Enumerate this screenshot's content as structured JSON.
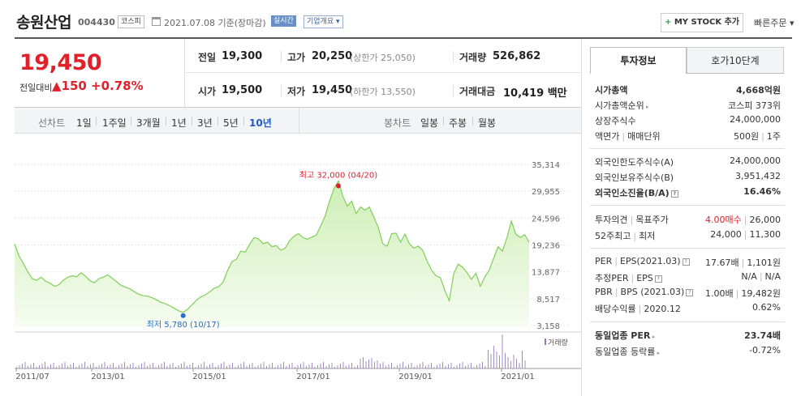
{
  "header": {
    "stock_name": "송원산업",
    "stock_code": "004430",
    "market": "코스피",
    "base_date": "2021.07.08 기준(장마감)",
    "realtime_label": "실시간",
    "company_label": "기업개요 ▾",
    "mystock_label": "MY STOCK 추가",
    "mystock_plus": "+",
    "quick_order_label": "빠른주문 ▾"
  },
  "price": {
    "current": "19,450",
    "prev_label": "전일대비",
    "change_amount": "▲150",
    "change_percent": "+0.78%"
  },
  "stats": {
    "prev_close_label": "전일",
    "prev_close": "19,300",
    "high_label": "고가",
    "high": "20,250",
    "upper_limit": "(상한가 25,050)",
    "volume_label": "거래량",
    "volume": "526,862",
    "open_label": "시가",
    "open": "19,500",
    "low_label": "저가",
    "low": "19,450",
    "lower_limit": "(하한가 13,550)",
    "amount_label": "거래대금",
    "amount": "10,419 백만"
  },
  "period_tabs": {
    "line_chart_label": "선차트",
    "items": [
      "1일",
      "1주일",
      "3개월",
      "1년",
      "3년",
      "5년",
      "10년"
    ],
    "active": "10년",
    "candle_label": "봉차트",
    "candle_items": [
      "일봉",
      "주봉",
      "월봉"
    ]
  },
  "chart_data": {
    "type": "area",
    "title": "",
    "ylabel": "",
    "xlabel": "",
    "ylim": [
      3158,
      35314
    ],
    "y_ticks": [
      "35,314",
      "29,955",
      "24,596",
      "19,236",
      "13,877",
      "8,517",
      "3,158"
    ],
    "x_ticks": [
      "2011/07",
      "2013/01",
      "2015/01",
      "2017/01",
      "2019/01",
      "2021/01"
    ],
    "high_annotation": "최고 32,000 (04/20)",
    "low_annotation": "최저 5,780 (10/17)",
    "volume_legend": "거래량",
    "line_color": "#7fcf5a",
    "fill_color": "#dff3cf",
    "high_color": "#e0202a",
    "low_color": "#1f6fd1",
    "series": [
      {
        "values": [
          19500,
          17000,
          15500,
          13800,
          12500,
          12200,
          12800,
          12000,
          11600,
          11000,
          11300,
          12200,
          12800,
          13100,
          12900,
          13700,
          13000,
          12100,
          11700,
          12500,
          12800,
          13300,
          12600,
          11900,
          11200,
          10800,
          10500,
          9900,
          9400,
          9100,
          9000,
          8700,
          8300,
          7800,
          7500,
          7100,
          6600,
          6100,
          5780,
          6400,
          7300,
          8200,
          8900,
          9300,
          9900,
          10600,
          10900,
          11800,
          14100,
          15900,
          16400,
          18000,
          17800,
          19400,
          20700,
          20500,
          19500,
          19800,
          18900,
          19100,
          18200,
          18600,
          20100,
          21000,
          21500,
          20700,
          20400,
          20800,
          21200,
          23000,
          25000,
          28000,
          30500,
          32000,
          29000,
          27000,
          28000,
          25500,
          26800,
          26200,
          26800,
          24800,
          22700,
          19500,
          19000,
          21500,
          21600,
          19800,
          21400,
          19500,
          18600,
          19000,
          18200,
          16000,
          14200,
          13100,
          12700,
          10100,
          8100,
          13500,
          15400,
          14800,
          13700,
          12400,
          13600,
          11000,
          12800,
          14200,
          16600,
          18900,
          18000,
          20700,
          24000,
          21400,
          20700,
          21300,
          19800
        ]
      }
    ]
  },
  "investment": {
    "tab_invest": "투자정보",
    "tab_hoga": "호가10단계",
    "market_cap_label": "시가총액",
    "market_cap": "4,668억원",
    "market_cap_rank_label": "시가총액순위",
    "market_cap_rank": "코스피 373위",
    "shares_label": "상장주식수",
    "shares": "24,000,000",
    "face_value_label": "액면가",
    "trade_unit_label": "매매단위",
    "face_value": "500원",
    "trade_unit": "1주",
    "foreign_limit_label": "외국인한도주식수(A)",
    "foreign_limit": "24,000,000",
    "foreign_held_label": "외국인보유주식수(B)",
    "foreign_held": "3,951,432",
    "foreign_ratio_label": "외국인소진율(B/A)",
    "foreign_ratio": "16.46%",
    "opinion_label": "투자의견",
    "target_price_label": "목표주가",
    "opinion": "4.00매수",
    "target_price": "26,000",
    "high52_label": "52주최고",
    "low52_label": "최저",
    "high52": "24,000",
    "low52": "11,300",
    "per_label": "PER",
    "eps_label": "EPS(2021.03)",
    "per": "17.67배",
    "eps": "1,101원",
    "est_per_label": "추정PER",
    "est_eps_label": "EPS",
    "est_per": "N/A",
    "est_eps": "N/A",
    "pbr_label": "PBR",
    "bps_label": "BPS (2021.03)",
    "pbr": "1.00배",
    "bps": "19,482원",
    "dividend_label": "배당수익률",
    "dividend_date": "2020.12",
    "dividend": "0.62%",
    "industry_per_label": "동일업종 PER",
    "industry_per": "23.74배",
    "industry_change_label": "동일업종 등락률",
    "industry_change": "-0.72%"
  }
}
